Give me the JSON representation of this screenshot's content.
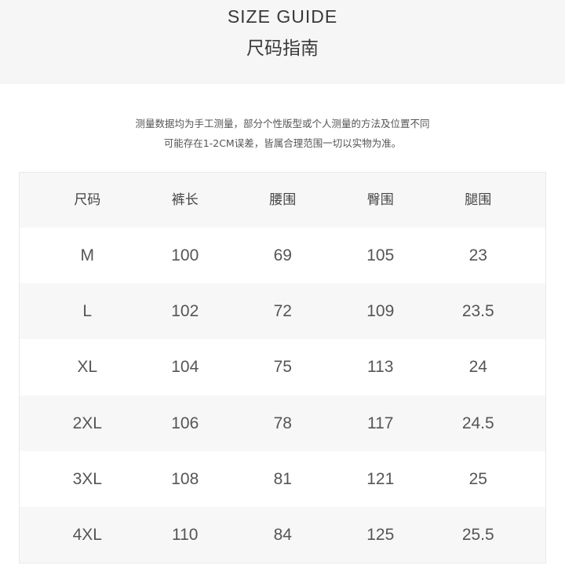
{
  "header": {
    "title_en": "SIZE GUIDE",
    "title_cn": "尺码指南"
  },
  "note": {
    "line1": "测量数据均为手工测量，部分个性版型或个人测量的方法及位置不同",
    "line2": "可能存在1-2CM误差，皆属合理范围一切以实物为准。"
  },
  "table": {
    "columns": [
      "尺码",
      "裤长",
      "腰围",
      "臀围",
      "腿围"
    ],
    "rows": [
      [
        "M",
        "100",
        "69",
        "105",
        "23"
      ],
      [
        "L",
        "102",
        "72",
        "109",
        "23.5"
      ],
      [
        "XL",
        "104",
        "75",
        "113",
        "24"
      ],
      [
        "2XL",
        "106",
        "78",
        "117",
        "24.5"
      ],
      [
        "3XL",
        "108",
        "81",
        "121",
        "25"
      ],
      [
        "4XL",
        "110",
        "84",
        "125",
        "25.5"
      ]
    ]
  }
}
